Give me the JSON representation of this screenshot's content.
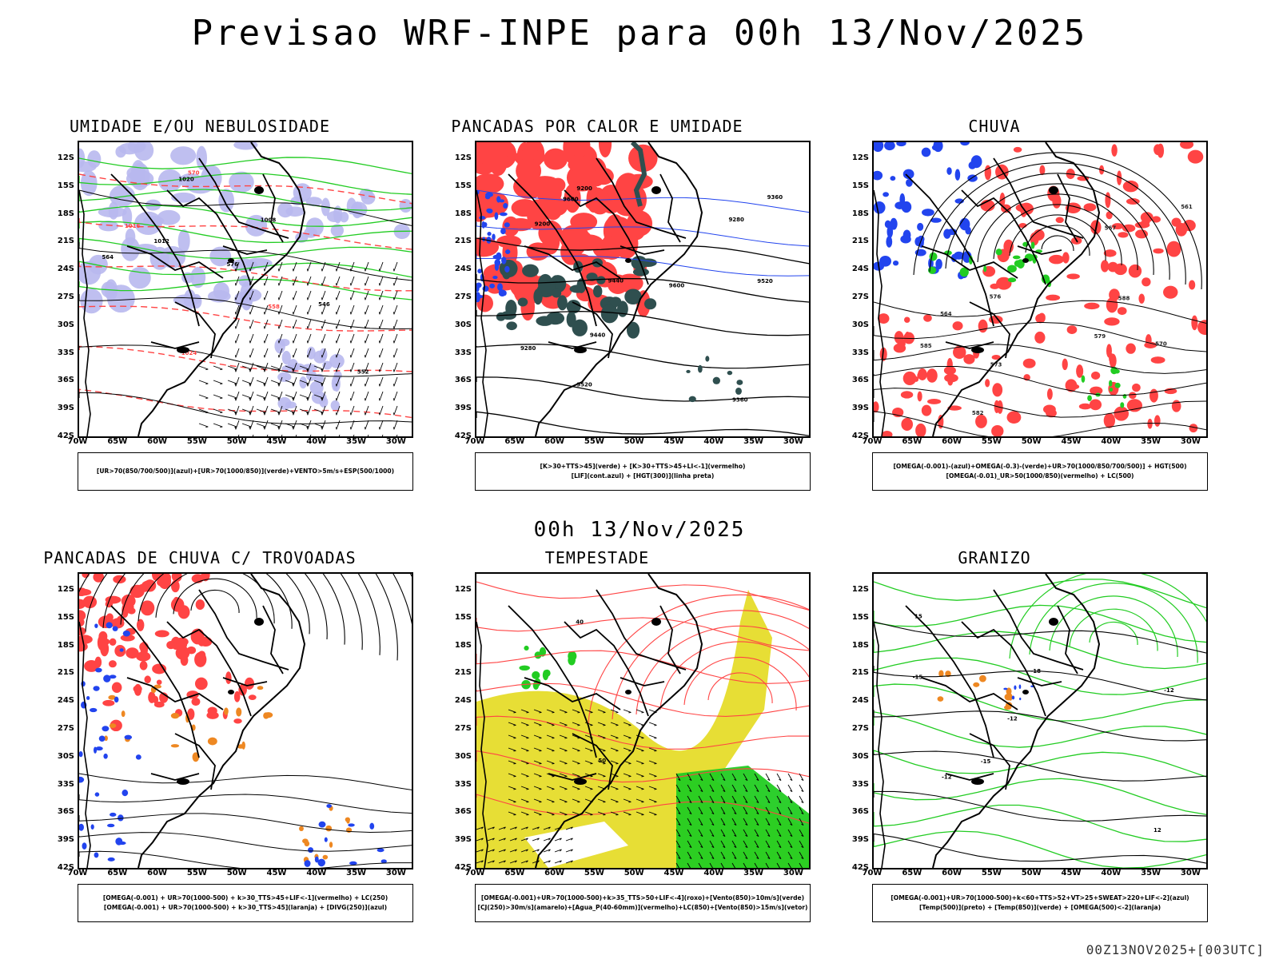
{
  "title": "Previsao WRF-INPE  para 00h 13/Nov/2025",
  "mid_title": "00h 13/Nov/2025",
  "footer": "00Z13NOV2025+[003UTC]",
  "lat_labels": [
    "12S",
    "15S",
    "18S",
    "21S",
    "24S",
    "27S",
    "30S",
    "33S",
    "36S",
    "39S",
    "42S"
  ],
  "lon_labels": [
    "70W",
    "65W",
    "60W",
    "55W",
    "50W",
    "45W",
    "40W",
    "35W",
    "30W"
  ],
  "colors": {
    "green": "#22cc22",
    "red": "#ff4444",
    "blue": "#2244ee",
    "lavender": "#b8b8ee",
    "teal": "#2f4f4f",
    "orange": "#ee8822",
    "yellow": "#e6dc2a"
  },
  "panels": [
    {
      "title": "UMIDADE E/OU NEBULOSIDADE",
      "legend": [
        "[UR>70(850/700/500)](azul)+[UR>70(1000/850)](verde)+VENTO>5m/s+ESP(500/1000)"
      ],
      "labels": [
        "1012",
        "1016",
        "576",
        "1020",
        "1024",
        "1008",
        "564",
        "558",
        "552",
        "546",
        "570"
      ]
    },
    {
      "title": "PANCADAS POR CALOR E UMIDADE",
      "legend": [
        "[K>30+TTS>45](verde) + [K>30+TTS>45+LI<-1](vermelho)",
        "[LIF](cont.azul) + [HGT(300)](linha preta)"
      ],
      "labels": [
        "9600",
        "9520",
        "9440",
        "9360",
        "9280",
        "9200",
        "9600",
        "9520",
        "9440",
        "9360",
        "9280",
        "9200"
      ]
    },
    {
      "title": "CHUVA",
      "legend": [
        "[OMEGA(-0.001)-(azul)+OMEGA(-0.3)-(verde)+UR>70(1000/850/700/500)] + HGT(500)",
        "[OMEGA(-0.01)_UR>50(1000/850)(vermelho) + LC(500)"
      ],
      "labels": [
        "582",
        "579",
        "576",
        "573",
        "570",
        "567",
        "564",
        "561",
        "588",
        "585"
      ]
    },
    {
      "title": "PANCADAS DE CHUVA C/ TROVOADAS",
      "legend": [
        "[OMEGA(-0.001) + UR>70(1000-500) + k>30_TTS>45+LIF<-1](vermelho) + LC(250)",
        "[OMEGA(-0.001) + UR>70(1000-500) + k>30_TTS>45](laranja) + [DIVG(250)](azul)"
      ],
      "labels": []
    },
    {
      "title": "TEMPESTADE",
      "legend": [
        "[OMEGA(-0.001)+UR>70(1000-500)+k>35_TTS>50+LIF<-4](roxo)+[Vento(850)>10m/s](verde)",
        "[CJ(250)>30m/s](amarelo)+[Agua_P(40-60mm)](vermelho)+LC(850)+[Vento(850)>15m/s](vetor)"
      ],
      "labels": [
        "50",
        "40"
      ]
    },
    {
      "title": "GRANIZO",
      "legend": [
        "[OMEGA(-0.001)+UR>70(1000-500)+k<60+TTS>52+VT>25+SWEAT>220+LIF<-2](azul)",
        "[Temp(500)](preto) + [Temp(850)](verde) + [OMEGA(500)<-2](laranja)"
      ],
      "labels": [
        "-12",
        "-15",
        "-12",
        "-12",
        "-15",
        "-18",
        "12",
        "15"
      ]
    }
  ]
}
